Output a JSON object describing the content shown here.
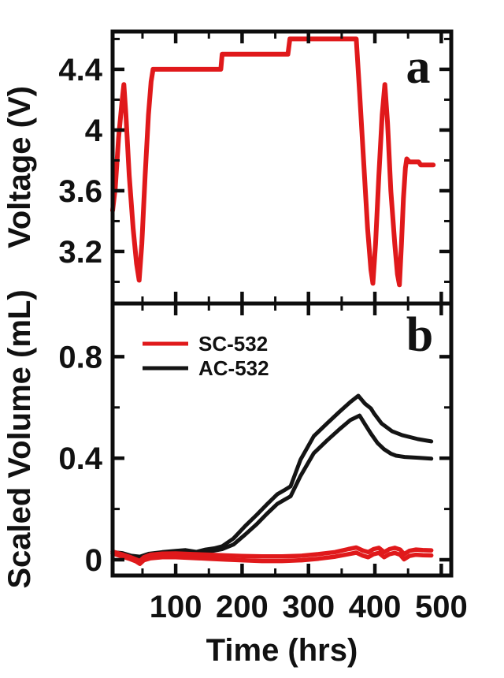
{
  "figure": {
    "xlabel": "Time (hrs)",
    "panel_a": {
      "letter": "a",
      "ylabel": "Voltage (V)"
    },
    "panel_b": {
      "letter": "b",
      "ylabel": "Scaled Volume (mL)"
    },
    "legend": [
      {
        "label": "SC-532",
        "color": "#e0191b"
      },
      {
        "label": "AC-532",
        "color": "#141414"
      }
    ],
    "colors": {
      "red": "#e0191b",
      "black": "#141414",
      "axis": "#0d0d0d",
      "background": "#ffffff"
    }
  },
  "chart_data": [
    {
      "type": "line",
      "panel": "a",
      "ylabel": "Voltage (V)",
      "xlabel": "Time (hrs)",
      "xlim": [
        5,
        515
      ],
      "ylim": [
        2.857,
        4.649
      ],
      "grid": false,
      "xticks_major": [
        {
          "v": 100,
          "label": "100"
        },
        {
          "v": 200,
          "label": "200"
        },
        {
          "v": 300,
          "label": "300"
        },
        {
          "v": 400,
          "label": "400"
        },
        {
          "v": 500,
          "label": "500"
        }
      ],
      "xticks_minor": [
        50,
        150,
        250,
        350,
        450
      ],
      "yticks_major": [
        {
          "v": 4.4,
          "label": "4.4"
        },
        {
          "v": 4.0,
          "label": "4"
        },
        {
          "v": 3.6,
          "label": "3.6"
        },
        {
          "v": 3.2,
          "label": "3.2"
        }
      ],
      "yticks_minor": [
        4.6,
        4.2,
        3.8,
        3.4,
        3.0
      ],
      "show_xlabels": false,
      "series": [
        {
          "name": "Voltage",
          "color": "#e0191b",
          "width": 6,
          "points": [
            [
              5,
              3.47
            ],
            [
              9,
              3.62
            ],
            [
              14,
              3.95
            ],
            [
              19,
              4.18
            ],
            [
              22,
              4.3
            ],
            [
              25,
              4.1
            ],
            [
              30,
              3.7
            ],
            [
              36,
              3.35
            ],
            [
              41,
              3.12
            ],
            [
              45,
              3.01
            ],
            [
              49,
              3.25
            ],
            [
              54,
              3.7
            ],
            [
              59,
              4.1
            ],
            [
              63,
              4.32
            ],
            [
              66,
              4.4
            ],
            [
              168,
              4.4
            ],
            [
              170,
              4.5
            ],
            [
              269,
              4.5
            ],
            [
              272,
              4.6
            ],
            [
              372,
              4.6
            ],
            [
              377,
              4.25
            ],
            [
              383,
              3.8
            ],
            [
              389,
              3.35
            ],
            [
              394,
              3.08
            ],
            [
              397,
              2.99
            ],
            [
              401,
              3.25
            ],
            [
              406,
              3.7
            ],
            [
              411,
              4.1
            ],
            [
              415,
              4.3
            ],
            [
              419,
              4.05
            ],
            [
              424,
              3.6
            ],
            [
              430,
              3.25
            ],
            [
              434,
              3.05
            ],
            [
              437,
              2.98
            ],
            [
              440,
              3.25
            ],
            [
              443,
              3.55
            ],
            [
              446,
              3.75
            ],
            [
              448,
              3.81
            ],
            [
              452,
              3.79
            ],
            [
              466,
              3.79
            ],
            [
              469,
              3.77
            ],
            [
              488,
              3.77
            ]
          ]
        }
      ]
    },
    {
      "type": "line",
      "panel": "b",
      "ylabel": "Scaled Volume (mL)",
      "xlabel": "Time (hrs)",
      "xlim": [
        5,
        515
      ],
      "ylim": [
        -0.0621,
        1.0093
      ],
      "grid": false,
      "legend_position": "upper-left",
      "xticks_major": [
        {
          "v": 100,
          "label": "100"
        },
        {
          "v": 200,
          "label": "200"
        },
        {
          "v": 300,
          "label": "300"
        },
        {
          "v": 400,
          "label": "400"
        },
        {
          "v": 500,
          "label": "500"
        }
      ],
      "xticks_minor": [
        50,
        150,
        250,
        350,
        450
      ],
      "yticks_major": [
        {
          "v": 0.8,
          "label": "0.8"
        },
        {
          "v": 0.4,
          "label": "0.4"
        },
        {
          "v": 0,
          "label": "0"
        }
      ],
      "yticks_minor": [
        0.6,
        0.2
      ],
      "show_xlabels": true,
      "series": [
        {
          "name": "AC-532",
          "color": "#141414",
          "width": 5,
          "points": [
            [
              5,
              0.03
            ],
            [
              20,
              0.026
            ],
            [
              33,
              0.016
            ],
            [
              46,
              0.012
            ],
            [
              60,
              0.024
            ],
            [
              80,
              0.03
            ],
            [
              100,
              0.035
            ],
            [
              115,
              0.038
            ],
            [
              131,
              0.031
            ],
            [
              145,
              0.04
            ],
            [
              158,
              0.045
            ],
            [
              170,
              0.053
            ],
            [
              187,
              0.084
            ],
            [
              205,
              0.134
            ],
            [
              222,
              0.177
            ],
            [
              237,
              0.217
            ],
            [
              253,
              0.258
            ],
            [
              263,
              0.273
            ],
            [
              273,
              0.289
            ],
            [
              288,
              0.394
            ],
            [
              308,
              0.487
            ],
            [
              328,
              0.537
            ],
            [
              347,
              0.584
            ],
            [
              363,
              0.621
            ],
            [
              375,
              0.646
            ],
            [
              385,
              0.615
            ],
            [
              394,
              0.596
            ],
            [
              399,
              0.575
            ],
            [
              410,
              0.537
            ],
            [
              426,
              0.506
            ],
            [
              441,
              0.491
            ],
            [
              465,
              0.475
            ],
            [
              485,
              0.466
            ]
          ]
        },
        {
          "name": "AC-532",
          "color": "#141414",
          "width": 5,
          "points": [
            [
              5,
              0.024
            ],
            [
              20,
              0.02
            ],
            [
              33,
              0.01
            ],
            [
              46,
              0.006
            ],
            [
              60,
              0.017
            ],
            [
              80,
              0.023
            ],
            [
              100,
              0.028
            ],
            [
              115,
              0.031
            ],
            [
              131,
              0.025
            ],
            [
              145,
              0.032
            ],
            [
              158,
              0.036
            ],
            [
              170,
              0.042
            ],
            [
              187,
              0.06
            ],
            [
              205,
              0.1
            ],
            [
              222,
              0.14
            ],
            [
              237,
              0.18
            ],
            [
              253,
              0.22
            ],
            [
              263,
              0.235
            ],
            [
              273,
              0.25
            ],
            [
              288,
              0.33
            ],
            [
              308,
              0.42
            ],
            [
              328,
              0.47
            ],
            [
              347,
              0.515
            ],
            [
              363,
              0.55
            ],
            [
              377,
              0.568
            ],
            [
              386,
              0.53
            ],
            [
              394,
              0.497
            ],
            [
              404,
              0.46
            ],
            [
              414,
              0.435
            ],
            [
              424,
              0.418
            ],
            [
              432,
              0.41
            ],
            [
              445,
              0.405
            ],
            [
              465,
              0.402
            ],
            [
              485,
              0.398
            ]
          ]
        },
        {
          "name": "SC-532",
          "color": "#e0191b",
          "width": 5.5,
          "points": [
            [
              5,
              0.032
            ],
            [
              18,
              0.022
            ],
            [
              30,
              0.012
            ],
            [
              40,
              0.002
            ],
            [
              46,
              -0.005
            ],
            [
              52,
              0.01
            ],
            [
              62,
              0.02
            ],
            [
              80,
              0.024
            ],
            [
              100,
              0.025
            ],
            [
              125,
              0.022
            ],
            [
              150,
              0.02
            ],
            [
              175,
              0.017
            ],
            [
              200,
              0.015
            ],
            [
              230,
              0.013
            ],
            [
              260,
              0.013
            ],
            [
              290,
              0.016
            ],
            [
              315,
              0.022
            ],
            [
              340,
              0.03
            ],
            [
              360,
              0.042
            ],
            [
              372,
              0.048
            ],
            [
              382,
              0.036
            ],
            [
              390,
              0.03
            ],
            [
              398,
              0.042
            ],
            [
              406,
              0.047
            ],
            [
              414,
              0.03
            ],
            [
              422,
              0.042
            ],
            [
              430,
              0.047
            ],
            [
              438,
              0.04
            ],
            [
              444,
              0.022
            ],
            [
              452,
              0.035
            ],
            [
              462,
              0.04
            ],
            [
              472,
              0.038
            ],
            [
              485,
              0.037
            ]
          ]
        },
        {
          "name": "SC-532",
          "color": "#e0191b",
          "width": 5.5,
          "points": [
            [
              5,
              0.025
            ],
            [
              18,
              0.014
            ],
            [
              30,
              0.004
            ],
            [
              40,
              -0.006
            ],
            [
              46,
              -0.016
            ],
            [
              52,
              -0.002
            ],
            [
              62,
              0.006
            ],
            [
              80,
              0.01
            ],
            [
              100,
              0.01
            ],
            [
              125,
              0.007
            ],
            [
              150,
              0.004
            ],
            [
              175,
              0.001
            ],
            [
              200,
              -0.002
            ],
            [
              230,
              -0.005
            ],
            [
              260,
              -0.005
            ],
            [
              290,
              -0.002
            ],
            [
              315,
              0.004
            ],
            [
              340,
              0.012
            ],
            [
              360,
              0.022
            ],
            [
              372,
              0.028
            ],
            [
              382,
              0.016
            ],
            [
              390,
              0.01
            ],
            [
              398,
              0.022
            ],
            [
              406,
              0.027
            ],
            [
              414,
              0.01
            ],
            [
              422,
              0.022
            ],
            [
              430,
              0.027
            ],
            [
              438,
              0.02
            ],
            [
              444,
              0.002
            ],
            [
              452,
              0.015
            ],
            [
              462,
              0.02
            ],
            [
              472,
              0.018
            ],
            [
              485,
              0.017
            ]
          ]
        }
      ]
    }
  ]
}
